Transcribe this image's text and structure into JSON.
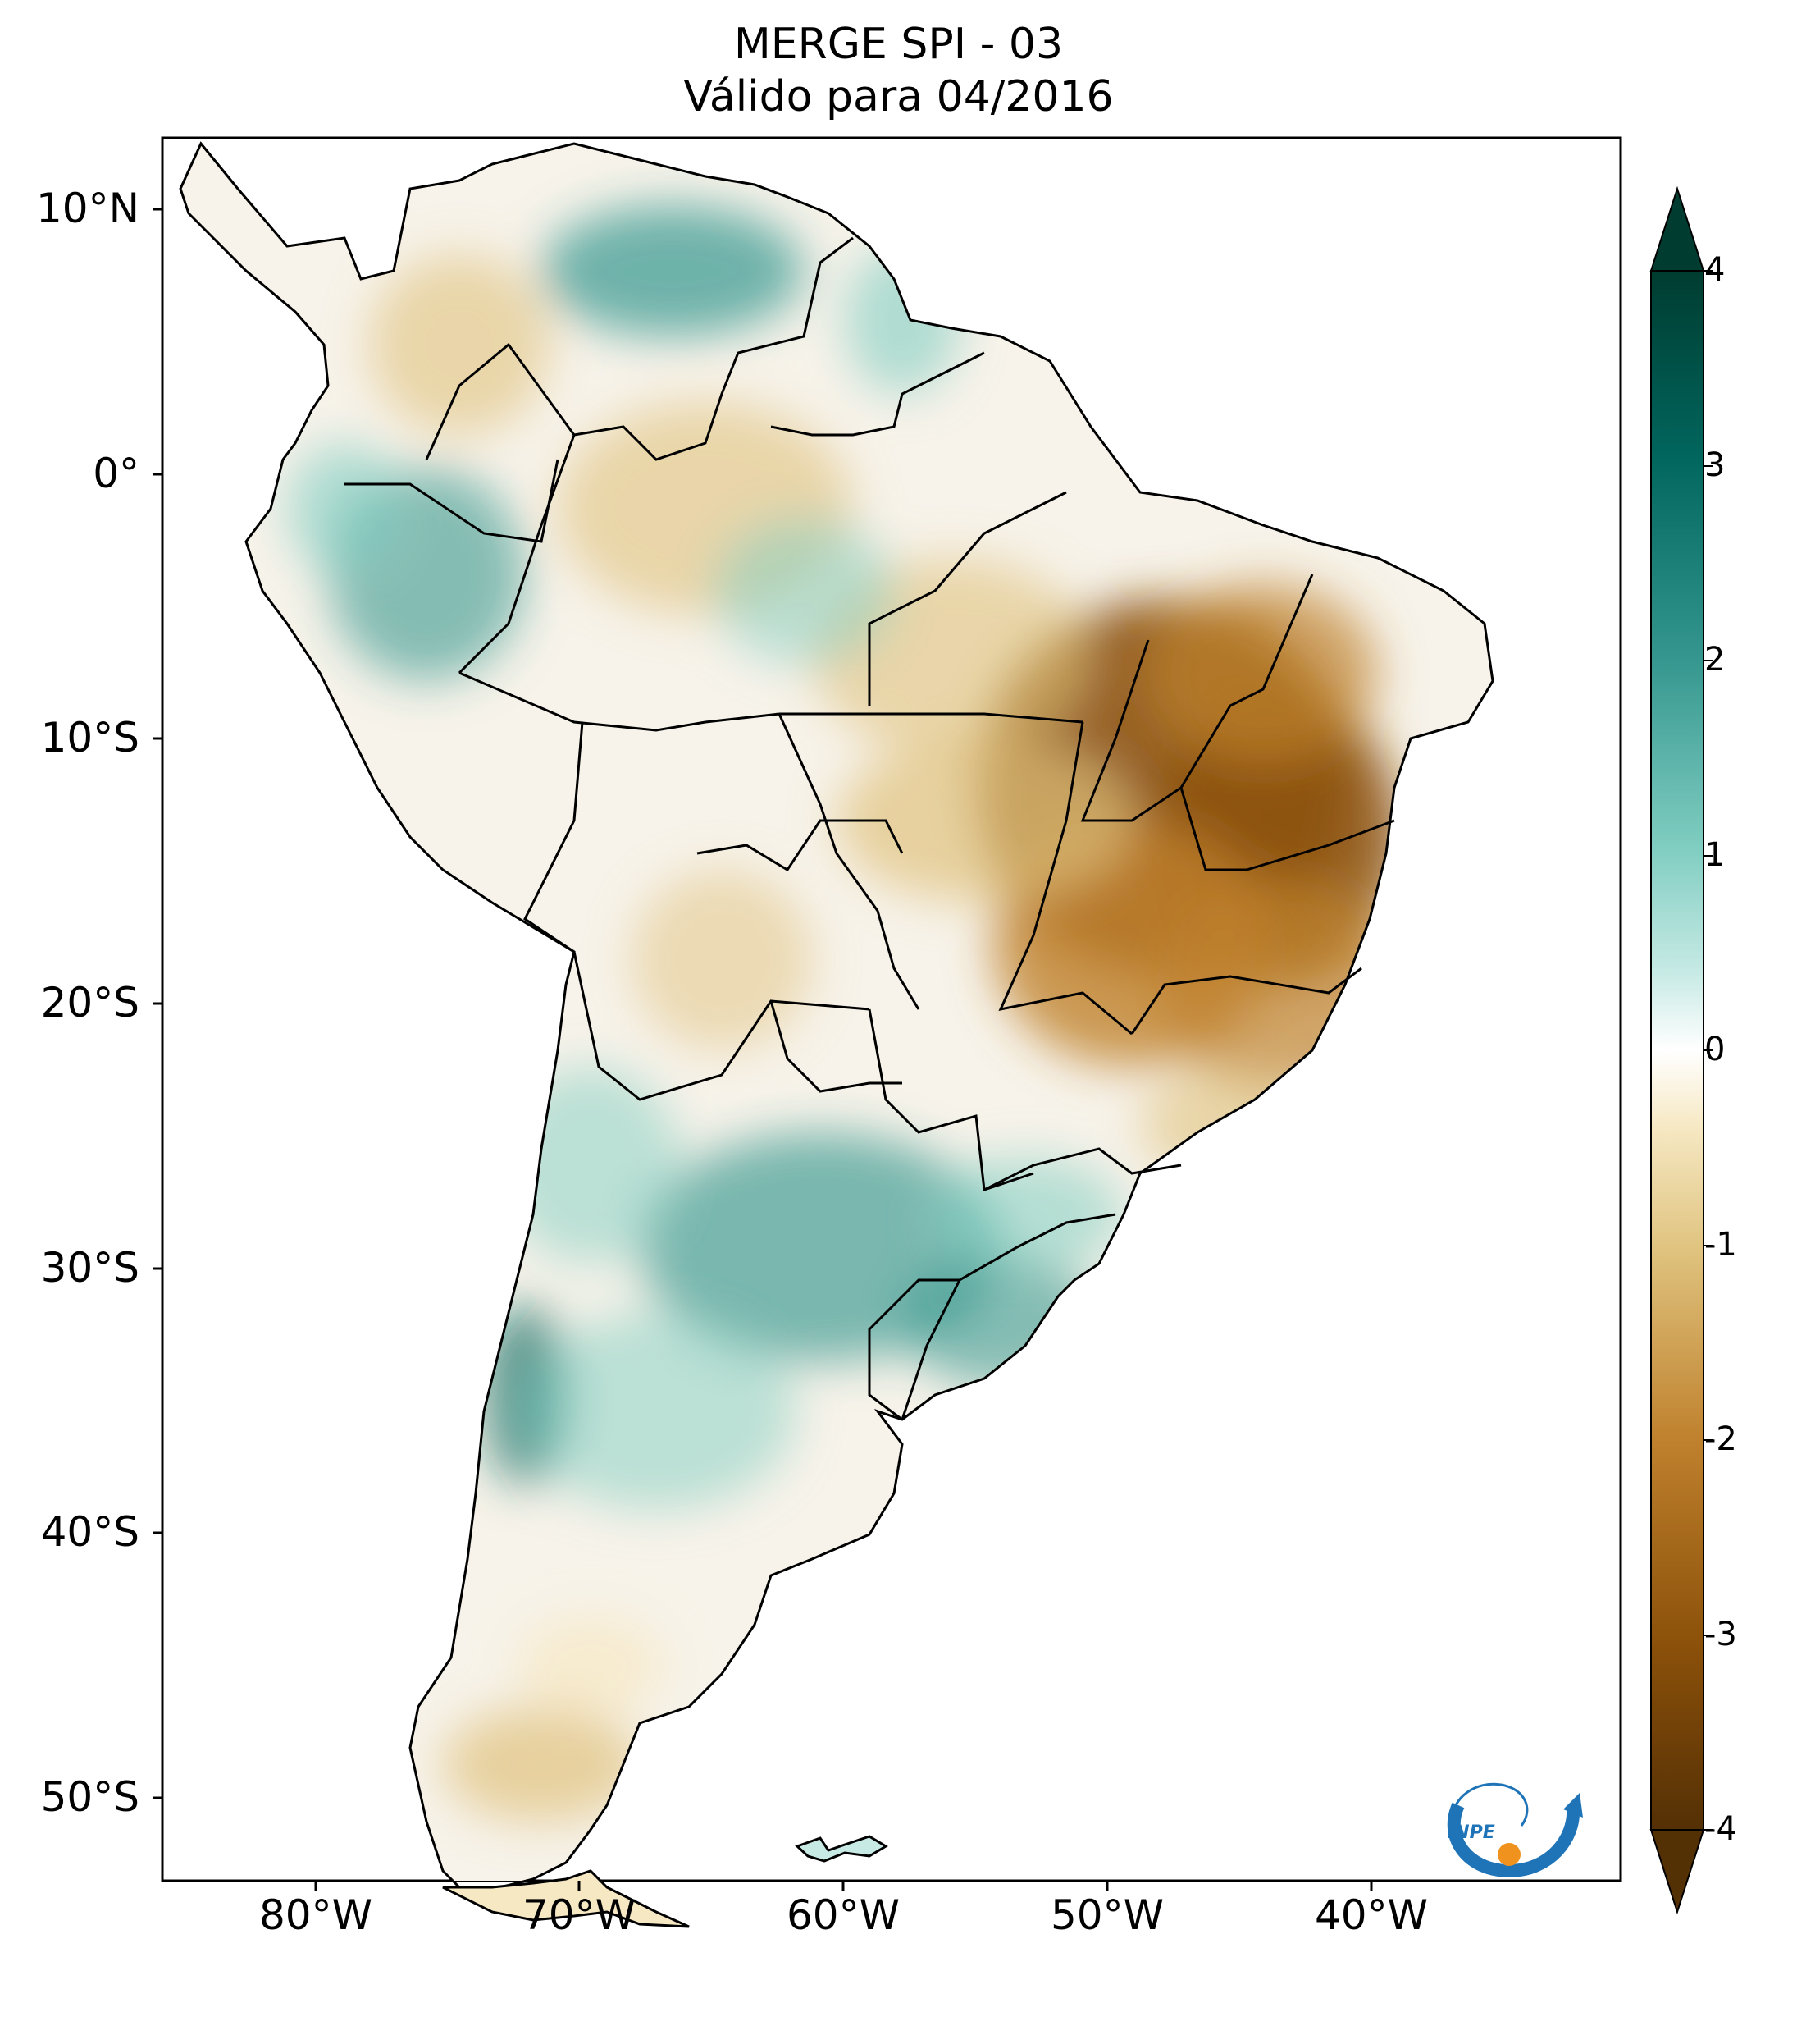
{
  "title": {
    "line1": "MERGE   SPI - 03",
    "line2": "Válido para 04/2016"
  },
  "axes": {
    "latitude_labels": [
      "10°N",
      "0°",
      "10°S",
      "20°S",
      "30°S",
      "40°S",
      "50°S"
    ],
    "longitude_labels": [
      "80°W",
      "70°W",
      "60°W",
      "50°W",
      "40°W"
    ]
  },
  "colorbar": {
    "ticks": [
      "4",
      "3",
      "2",
      "1",
      "0",
      "-1",
      "-2",
      "-3",
      "-4"
    ],
    "min": -4,
    "max": 4,
    "colors": {
      "dry_extreme": "#543005",
      "dry_strong": "#8c510a",
      "dry_moderate": "#bf812d",
      "dry_mild": "#dfc27d",
      "dry_slight": "#f6e8c3",
      "neutral": "#ffffff",
      "wet_slight": "#c7eae5",
      "wet_mild": "#80cdc1",
      "wet_moderate": "#35978f",
      "wet_strong": "#01665e",
      "wet_extreme": "#003c30"
    }
  },
  "logo": {
    "text": "INPE",
    "colors": {
      "blue": "#1f74b8",
      "orange": "#f0931e"
    }
  }
}
